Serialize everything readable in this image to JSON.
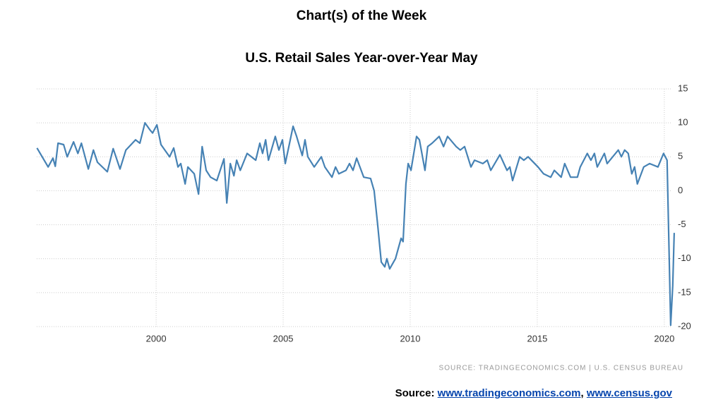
{
  "chart_data": {
    "type": "line",
    "title": "Chart(s) of the Week",
    "subtitle": "U.S. Retail Sales Year-over-Year May",
    "source_note": "SOURCE: TRADINGECONOMICS.COM | U.S. CENSUS BUREAU",
    "footer": {
      "label": "Source:",
      "links": [
        "www.tradingeconomics.com",
        "www.census.gov"
      ],
      "separator": ","
    },
    "x": [
      1995.31,
      1995.75,
      1995.94,
      1996.03,
      1996.14,
      1996.36,
      1996.5,
      1996.75,
      1996.92,
      1997.06,
      1997.33,
      1997.53,
      1997.69,
      1998.08,
      1998.31,
      1998.58,
      1998.81,
      1999.19,
      1999.36,
      1999.56,
      1999.75,
      1999.86,
      2000.03,
      2000.19,
      2000.53,
      2000.69,
      2000.86,
      2000.97,
      2001.14,
      2001.25,
      2001.5,
      2001.67,
      2001.81,
      2001.97,
      2002.14,
      2002.39,
      2002.67,
      2002.78,
      2002.92,
      2003.06,
      2003.17,
      2003.31,
      2003.58,
      2003.92,
      2004.08,
      2004.19,
      2004.31,
      2004.42,
      2004.69,
      2004.83,
      2004.97,
      2005.08,
      2005.25,
      2005.39,
      2005.53,
      2005.75,
      2005.86,
      2005.97,
      2006.22,
      2006.5,
      2006.64,
      2006.92,
      2007.06,
      2007.19,
      2007.47,
      2007.61,
      2007.75,
      2007.89,
      2008.17,
      2008.44,
      2008.58,
      2008.72,
      2008.86,
      2009.0,
      2009.08,
      2009.19,
      2009.42,
      2009.64,
      2009.72,
      2009.83,
      2009.92,
      2010.03,
      2010.25,
      2010.36,
      2010.58,
      2010.69,
      2010.86,
      2011.14,
      2011.31,
      2011.47,
      2011.81,
      2011.97,
      2012.14,
      2012.39,
      2012.53,
      2012.86,
      2013.03,
      2013.17,
      2013.53,
      2013.81,
      2013.92,
      2014.03,
      2014.31,
      2014.47,
      2014.64,
      2015.03,
      2015.25,
      2015.53,
      2015.67,
      2015.94,
      2016.08,
      2016.31,
      2016.58,
      2016.69,
      2016.97,
      2017.11,
      2017.25,
      2017.36,
      2017.64,
      2017.75,
      2018.19,
      2018.31,
      2018.44,
      2018.58,
      2018.72,
      2018.83,
      2018.94,
      2019.19,
      2019.42,
      2019.75,
      2019.97,
      2020.11,
      2020.17,
      2020.25,
      2020.33,
      2020.39
    ],
    "series": [
      {
        "name": "Retail Sales YoY",
        "color": "#4682b4",
        "values": [
          6.3,
          3.5,
          4.8,
          3.6,
          7.0,
          6.8,
          5.0,
          7.2,
          5.5,
          7.0,
          3.2,
          6.0,
          4.2,
          2.8,
          6.2,
          3.2,
          6.0,
          7.5,
          7.0,
          10.0,
          9.0,
          8.5,
          9.7,
          6.8,
          5.0,
          6.3,
          3.5,
          4.0,
          1.0,
          3.5,
          2.5,
          -0.5,
          6.5,
          3.0,
          2.0,
          1.5,
          4.7,
          -1.8,
          4.0,
          2.2,
          4.5,
          3.0,
          5.5,
          4.5,
          7.0,
          5.5,
          7.5,
          4.5,
          8.0,
          6.0,
          7.5,
          4.0,
          7.0,
          9.5,
          8.0,
          5.2,
          7.5,
          5.0,
          3.5,
          5.0,
          3.5,
          2.0,
          3.5,
          2.5,
          3.0,
          4.0,
          3.0,
          4.8,
          2.0,
          1.8,
          0.0,
          -5.0,
          -10.5,
          -11.2,
          -10.0,
          -11.5,
          -10.0,
          -7.0,
          -7.5,
          1.0,
          4.0,
          3.0,
          8.0,
          7.5,
          3.0,
          6.5,
          7.0,
          8.0,
          6.5,
          8.0,
          6.5,
          6.0,
          6.5,
          3.5,
          4.5,
          4.0,
          4.5,
          3.0,
          5.3,
          3.0,
          3.5,
          1.5,
          5.0,
          4.5,
          5.0,
          3.5,
          2.5,
          2.0,
          3.0,
          2.0,
          4.0,
          2.0,
          2.0,
          3.5,
          5.5,
          4.5,
          5.5,
          3.5,
          5.5,
          4.0,
          6.0,
          5.0,
          6.0,
          5.5,
          2.5,
          3.5,
          1.0,
          3.5,
          4.0,
          3.5,
          5.5,
          4.5,
          -6.0,
          -19.8,
          -14.0,
          -6.2
        ]
      }
    ],
    "xlim": [
      1995.3,
      2020.42
    ],
    "xticks": [
      2000,
      2005,
      2010,
      2015,
      2020
    ],
    "ylim": [
      -20,
      15
    ],
    "yticks": [
      -20,
      -15,
      -10,
      -5,
      0,
      5,
      10,
      15
    ],
    "grid": true
  }
}
